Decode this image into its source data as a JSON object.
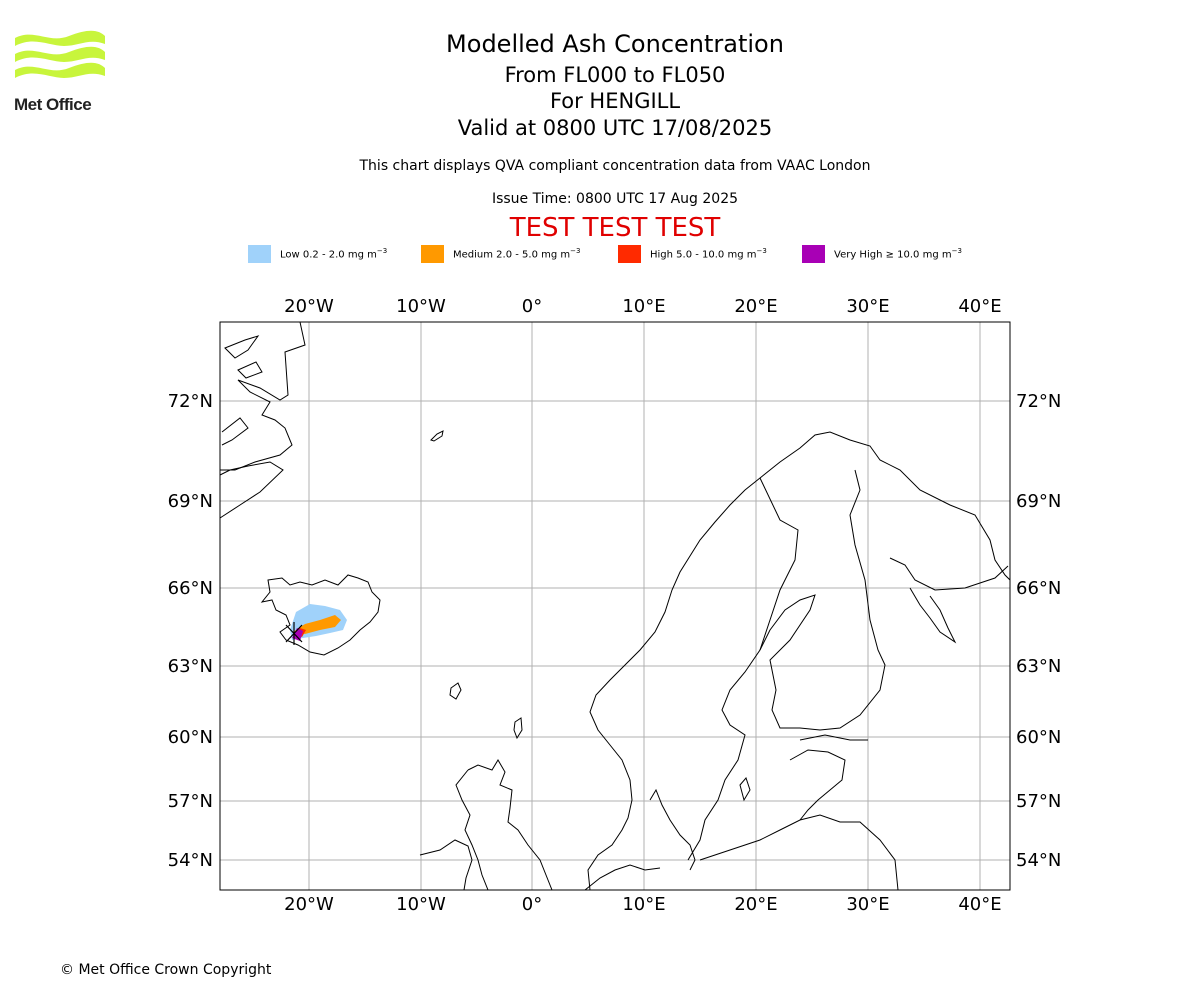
{
  "logo": {
    "text": "Met Office",
    "color": "#c8f53c"
  },
  "header": {
    "title": "Modelled Ash Concentration",
    "levels": "From FL000 to FL050",
    "volcano": "For HENGILL",
    "valid": "Valid at 0800 UTC 17/08/2025",
    "description": "This chart displays QVA compliant concentration data from VAAC London",
    "issue_time": "Issue Time: 0800 UTC 17 Aug 2025",
    "test_banner": "TEST TEST TEST",
    "test_color": "#e00000"
  },
  "legend": [
    {
      "label": "Low 0.2 - 2.0 mg m",
      "unit_exp": "−3",
      "color": "#a0d2fa"
    },
    {
      "label": "Medium 2.0 - 5.0 mg m",
      "unit_exp": "−3",
      "color": "#ff9900"
    },
    {
      "label": "High 5.0 - 10.0 mg m",
      "unit_exp": "−3",
      "color": "#ff2a00"
    },
    {
      "label": "Very High ≥ 10.0 mg m",
      "unit_exp": "−3",
      "color": "#a800b5"
    }
  ],
  "map": {
    "lon_ticks": [
      "20°W",
      "10°W",
      "0°",
      "10°E",
      "20°E",
      "30°E",
      "40°E"
    ],
    "lat_ticks": [
      "72°N",
      "69°N",
      "66°N",
      "63°N",
      "60°N",
      "57°N",
      "54°N"
    ],
    "grid": true,
    "coastline_color": "#000000"
  },
  "footer": {
    "copyright": "© Met Office Crown Copyright"
  }
}
